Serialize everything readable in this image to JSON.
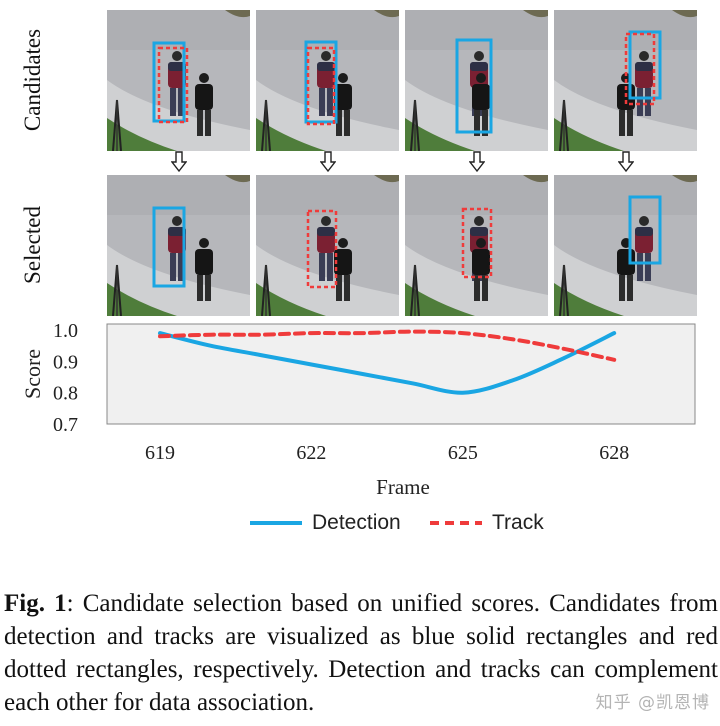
{
  "figure": {
    "row_labels": {
      "candidates": "Candidates",
      "selected": "Selected"
    },
    "detection_color": "#1aa6e3",
    "track_color": "#ef3b3b",
    "candidate_frames": [
      {
        "frame": "619",
        "boxes": [
          "detection",
          "track"
        ]
      },
      {
        "frame": "622",
        "boxes": [
          "detection",
          "track"
        ]
      },
      {
        "frame": "625",
        "boxes": [
          "detection"
        ]
      },
      {
        "frame": "628",
        "boxes": [
          "detection",
          "track"
        ]
      }
    ],
    "selected_frames": [
      {
        "frame": "619",
        "boxes": [
          "detection"
        ]
      },
      {
        "frame": "622",
        "boxes": [
          "track"
        ]
      },
      {
        "frame": "625",
        "boxes": [
          "track"
        ]
      },
      {
        "frame": "628",
        "boxes": [
          "detection"
        ]
      }
    ]
  },
  "chart_data": {
    "type": "line",
    "xlabel": "Frame",
    "ylabel": "Score",
    "x_ticks": [
      619,
      622,
      625,
      628
    ],
    "yticks": [
      "1.0",
      "0.9",
      "0.8",
      "0.7"
    ],
    "ylim": [
      0.7,
      1.0
    ],
    "grid": false,
    "legend_placement": "bottom",
    "series": [
      {
        "name": "Detection",
        "style": "solid",
        "color": "#1aa6e3",
        "x": [
          619,
          620,
          621,
          622,
          623,
          624,
          625,
          626,
          627,
          628
        ],
        "y": [
          0.99,
          0.95,
          0.92,
          0.89,
          0.86,
          0.83,
          0.8,
          0.84,
          0.91,
          0.99
        ]
      },
      {
        "name": "Track",
        "style": "dashed",
        "color": "#ef3b3b",
        "x": [
          619,
          620,
          621,
          622,
          623,
          624,
          625,
          626,
          627,
          628
        ],
        "y": [
          0.98,
          0.985,
          0.985,
          0.99,
          0.99,
          0.995,
          0.99,
          0.97,
          0.94,
          0.905
        ]
      }
    ]
  },
  "caption": {
    "label": "Fig. 1",
    "text": ": Candidate selection based on unified scores. Candidates from detection and tracks are visualized as blue solid rectangles and red dotted rectangles, respectively. Detection and tracks can complement each other for data association."
  },
  "watermark": "知乎 @凯恩博"
}
